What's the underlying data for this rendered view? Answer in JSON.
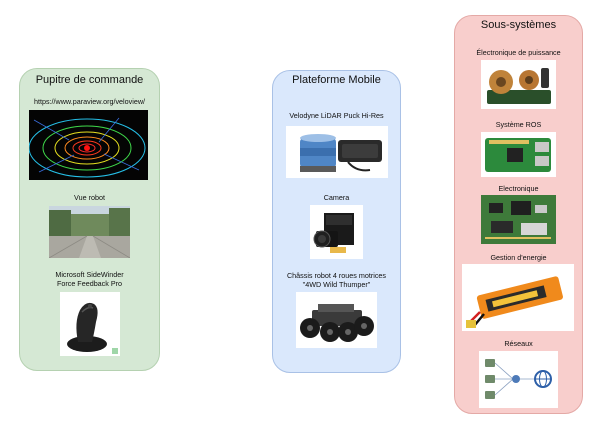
{
  "pupitre": {
    "title": "Pupitre de commande",
    "url_label": "https://www.paraview.org/veloview/",
    "robot_view_label": "Vue robot",
    "joystick_label_line1": "Microsoft SideWinder",
    "joystick_label_line2": "Force Feedback Pro"
  },
  "plateforme": {
    "title": "Plateforme Mobile",
    "lidar_label": "Velodyne LiDAR Puck Hi-Res",
    "camera_label": "Camera",
    "chassis_label_line1": "Châssis robot 4 roues motrices",
    "chassis_label_line2": "\"4WD Wild Thumper\""
  },
  "sous_systemes": {
    "title": "Sous-systèmes",
    "power_label": "Électronique de puissance",
    "ros_label": "Système ROS",
    "electronics_label": "Electronique",
    "energy_label": "Gestion d'energie",
    "network_label": "Réseaux"
  },
  "colors": {
    "green_panel": "#d5e8d4",
    "blue_panel": "#dae8fc",
    "red_panel": "#f8cecc"
  }
}
